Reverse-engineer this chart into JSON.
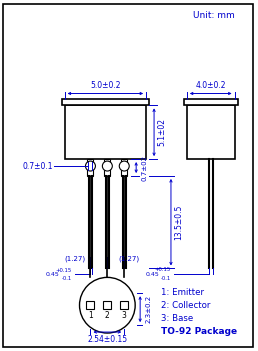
{
  "bg_color": "#ffffff",
  "line_color": "#000000",
  "dim_color": "#0000cd",
  "legend": [
    "1: Emitter",
    "2: Collector",
    "3: Base",
    "TO-92 Package"
  ]
}
